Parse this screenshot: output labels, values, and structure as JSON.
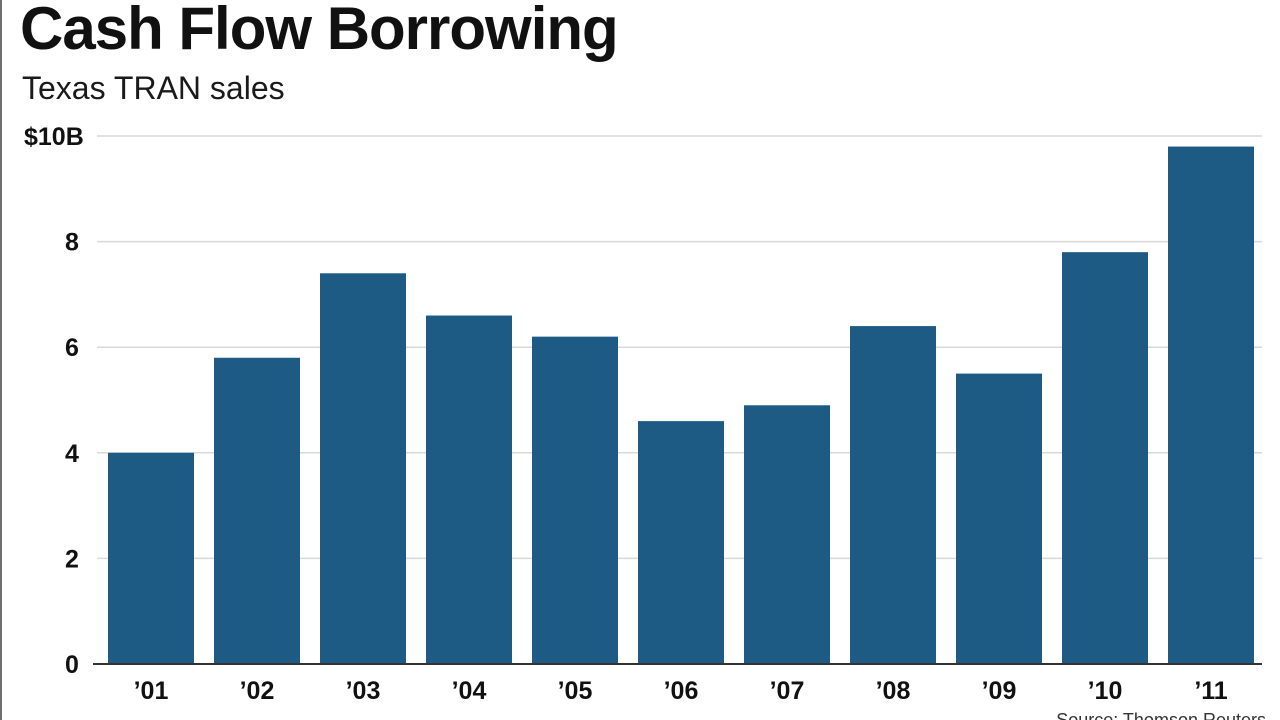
{
  "title": "Cash Flow Borrowing",
  "subtitle": "Texas TRAN sales",
  "source": "Source: Thomson Reuters",
  "colors": {
    "bar": "#1d5b85",
    "grid": "#d9d9d9",
    "axis": "#333333"
  },
  "chart_data": {
    "type": "bar",
    "categories": [
      "’01",
      "’02",
      "’03",
      "’04",
      "’05",
      "’06",
      "’07",
      "’08",
      "’09",
      "’10",
      "’11"
    ],
    "values": [
      4.0,
      5.8,
      7.4,
      6.6,
      6.2,
      4.6,
      4.9,
      6.4,
      5.5,
      7.8,
      9.8
    ],
    "title": "Cash Flow Borrowing",
    "subtitle": "Texas TRAN sales",
    "xlabel": "",
    "ylabel": "",
    "unit": "$ billions",
    "ylim": [
      0,
      10
    ],
    "yticks": [
      {
        "value": 0,
        "label": "0"
      },
      {
        "value": 2,
        "label": "2"
      },
      {
        "value": 4,
        "label": "4"
      },
      {
        "value": 6,
        "label": "6"
      },
      {
        "value": 8,
        "label": "8"
      },
      {
        "value": 10,
        "label": "$10B"
      }
    ],
    "grid": true,
    "legend": "none"
  }
}
